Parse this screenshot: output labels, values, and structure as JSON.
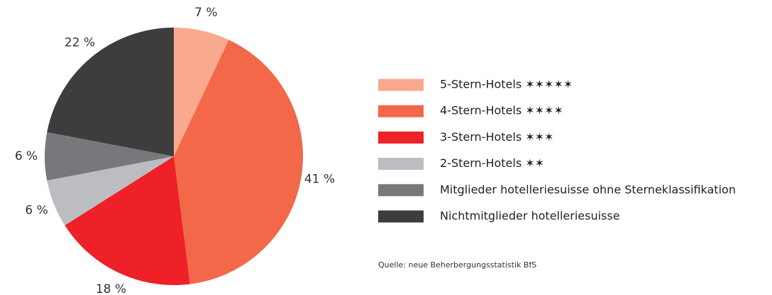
{
  "chart_data": {
    "type": "pie",
    "categories": [
      "5-Stern-Hotels ✶✶✶✶✶",
      "4-Stern-Hotels ✶✶✶✶",
      "3-Stern-Hotels ✶✶✶",
      "2-Stern-Hotels ✶✶",
      "Mitglieder hotelleriesuisse ohne Sterneklassifikation",
      "Nichtmitglieder hotelleriesuisse"
    ],
    "values": [
      7,
      41,
      18,
      6,
      6,
      22
    ],
    "value_labels": [
      "7 %",
      "41 %",
      "18 %",
      "6 %",
      "6 %",
      "22 %"
    ],
    "colors": [
      "#f9a98d",
      "#f26849",
      "#ee2128",
      "#bcbdc0",
      "#77787b",
      "#3d3d3d"
    ],
    "source": "Quelle: neue Beherbergungsstatistik BfS"
  }
}
